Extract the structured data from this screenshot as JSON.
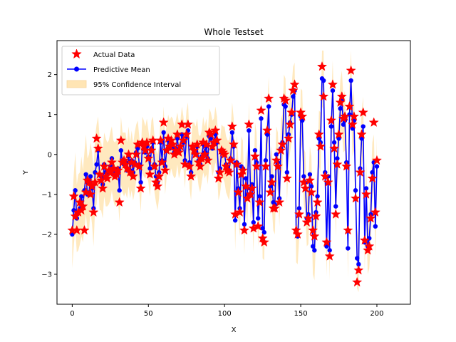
{
  "chart_data": {
    "type": "line",
    "title": "Whole Testset",
    "xlabel": "X",
    "ylabel": "Y",
    "xlim": [
      -10,
      222
    ],
    "ylim": [
      -3.75,
      2.85
    ],
    "x_ticks": [
      0,
      50,
      100,
      150,
      200
    ],
    "y_ticks": [
      -3,
      -2,
      -1,
      0,
      1,
      2
    ],
    "grid": false,
    "legend_position": "upper-left",
    "legend": [
      {
        "label": "Actual Data",
        "kind": "star",
        "color": "#ff0000"
      },
      {
        "label": "Predictive Mean",
        "kind": "line-marker",
        "color": "#0000ff"
      },
      {
        "label": "95% Confidence Interval",
        "kind": "band",
        "color": "#ffe5b4"
      }
    ],
    "series": [
      {
        "name": "Actual Data",
        "values": [
          -1.9,
          -1.05,
          -1.55,
          -1.9,
          -1.45,
          -1.2,
          -1.4,
          -1.3,
          -1.9,
          -0.95,
          -0.65,
          -0.7,
          -1.0,
          -0.8,
          -1.45,
          -0.7,
          0.4,
          0.15,
          -0.5,
          -0.65,
          -0.85,
          -0.3,
          -0.55,
          -0.6,
          -0.4,
          -0.45,
          -0.2,
          -0.35,
          -0.55,
          -0.5,
          -0.4,
          -1.2,
          0.35,
          -0.2,
          -0.15,
          -0.25,
          -0.35,
          0.0,
          -0.45,
          -0.2,
          -0.55,
          -0.25,
          0.0,
          0.25,
          -0.3,
          -0.85,
          0.3,
          0.2,
          0.1,
          0.3,
          -0.1,
          -0.5,
          0.1,
          0.35,
          -0.3,
          -0.7,
          -0.8,
          -0.55,
          0.35,
          -0.2,
          0.8,
          -0.4,
          0.1,
          0.4,
          0.2,
          0.35,
          0.25,
          0.0,
          0.1,
          0.5,
          0.05,
          0.2,
          0.75,
          0.35,
          -0.25,
          0.5,
          0.75,
          -0.3,
          -0.55,
          0.2,
          0.1,
          0.0,
          0.25,
          -0.2,
          -0.3,
          -0.1,
          0.3,
          0.0,
          0.25,
          -0.15,
          0.55,
          0.5,
          0.2,
          0.3,
          0.6,
          0.35,
          -0.6,
          -0.45,
          0.1,
          0.05,
          0.0,
          -0.3,
          -0.4,
          -0.45,
          -0.15,
          0.7,
          0.25,
          -1.5,
          -0.25,
          -0.95,
          -1.45,
          -0.5,
          -0.4,
          -1.9,
          -0.8,
          -1.1,
          0.75,
          -1.0,
          -0.85,
          -1.85,
          -0.05,
          -0.3,
          -1.8,
          -1.2,
          1.1,
          -2.1,
          -2.2,
          -0.3,
          0.6,
          1.4,
          -0.95,
          -0.7,
          -1.35,
          -1.35,
          -0.15,
          -0.3,
          -1.2,
          0.1,
          0.25,
          1.4,
          1.35,
          -0.6,
          0.4,
          0.75,
          1.05,
          1.6,
          1.75,
          -1.9,
          -2.0,
          -1.5,
          1.05,
          0.95,
          -0.7,
          -0.85,
          -1.7,
          -1.6,
          -0.65,
          -0.95,
          -1.9,
          -2.05,
          -1.55,
          -1.2,
          0.5,
          0.2,
          2.2,
          1.45,
          -0.55,
          -2.2,
          -0.7,
          -2.55,
          0.85,
          1.75,
          0.15,
          -1.5,
          -0.25,
          0.5,
          1.3,
          1.45,
          0.9,
          0.95,
          -0.3,
          -1.9,
          1.2,
          2.1,
          0.75,
          0.95,
          -1.1,
          -3.2,
          -2.9,
          -0.45,
          0.5,
          1.05,
          -2.15,
          -1.0,
          -2.4,
          -2.3,
          -1.6,
          -0.6,
          0.8,
          -1.45,
          -0.15
        ]
      },
      {
        "name": "Predictive Mean",
        "values": [
          -2.0,
          -1.4,
          -0.9,
          -1.6,
          -1.45,
          -1.35,
          -1.05,
          -1.3,
          -0.9,
          -0.5,
          -1.0,
          -0.95,
          -0.55,
          -0.85,
          -1.35,
          -0.45,
          -0.25,
          0.1,
          -0.5,
          -0.55,
          -0.75,
          -0.25,
          -0.45,
          -0.5,
          -0.45,
          -0.3,
          -0.1,
          -0.4,
          -0.5,
          -0.45,
          -0.35,
          -0.9,
          0.1,
          -0.2,
          -0.25,
          -0.2,
          -0.4,
          -0.05,
          -0.4,
          -0.15,
          -0.45,
          -0.2,
          0.05,
          0.15,
          -0.25,
          -0.7,
          0.25,
          0.15,
          0.05,
          0.2,
          -0.05,
          -0.35,
          0.15,
          0.3,
          -0.25,
          -0.55,
          -0.7,
          -0.45,
          0.3,
          -0.15,
          0.55,
          -0.3,
          0.1,
          0.35,
          0.15,
          0.3,
          0.2,
          0.05,
          0.15,
          0.4,
          0.1,
          0.2,
          0.5,
          0.3,
          -0.15,
          0.45,
          0.6,
          -0.2,
          -0.45,
          0.15,
          0.1,
          0.05,
          0.2,
          -0.15,
          -0.25,
          -0.05,
          0.25,
          0.05,
          0.2,
          -0.1,
          0.45,
          0.4,
          0.15,
          0.25,
          0.5,
          0.3,
          -0.45,
          -0.35,
          0.05,
          0.05,
          0.0,
          -0.25,
          -0.35,
          -0.4,
          -0.1,
          0.55,
          0.2,
          -1.65,
          -0.2,
          -0.85,
          -1.35,
          -0.3,
          -0.35,
          -1.75,
          -0.6,
          -1.0,
          0.6,
          -0.85,
          -0.75,
          -1.7,
          0.1,
          -0.2,
          -1.6,
          -1.05,
          0.9,
          -1.85,
          -1.95,
          -0.15,
          0.5,
          1.2,
          -0.8,
          -0.55,
          -1.2,
          -1.25,
          0.0,
          -0.2,
          -1.1,
          0.15,
          0.3,
          1.25,
          1.2,
          -0.45,
          0.5,
          0.8,
          1.0,
          1.45,
          1.6,
          -1.95,
          -2.05,
          -1.35,
          0.95,
          0.85,
          -0.55,
          -0.7,
          -1.6,
          -1.5,
          -0.5,
          -0.8,
          -2.3,
          -2.4,
          -1.45,
          -1.05,
          0.4,
          0.3,
          1.9,
          1.85,
          -0.45,
          -2.3,
          -0.55,
          -2.4,
          0.7,
          1.6,
          0.3,
          -1.3,
          -0.1,
          0.4,
          1.15,
          1.35,
          0.75,
          0.85,
          -0.2,
          -2.35,
          1.0,
          1.85,
          0.65,
          0.85,
          -0.9,
          -2.6,
          -2.75,
          -0.35,
          0.4,
          0.7,
          -2.2,
          -0.85,
          -2.3,
          -2.1,
          -1.5,
          -0.45,
          -0.2,
          -1.8,
          -0.3
        ]
      }
    ],
    "interval_width": [
      0.85,
      0.9,
      0.95,
      0.85,
      0.95,
      0.9,
      1.0,
      0.9,
      0.95,
      1.0,
      0.9,
      0.95,
      0.85,
      0.9,
      0.95,
      0.9,
      1.0,
      0.85,
      0.9,
      0.85,
      0.85,
      0.8,
      0.85,
      0.8,
      0.8,
      0.85,
      0.8,
      0.75,
      0.8,
      0.8,
      0.75,
      0.8,
      0.85,
      0.75,
      0.8,
      0.75,
      0.7,
      0.75,
      0.7,
      0.75,
      0.7,
      0.75,
      0.7,
      0.7,
      0.7,
      0.75,
      0.7,
      0.7,
      0.65,
      0.7,
      0.65,
      0.7,
      0.7,
      0.65,
      0.7,
      0.65,
      0.7,
      0.65,
      0.65,
      0.7,
      0.65,
      0.7,
      0.65,
      0.65,
      0.7,
      0.65,
      0.7,
      0.65,
      0.7,
      0.65,
      0.7,
      0.65,
      0.7,
      0.65,
      0.7,
      0.65,
      0.7,
      0.65,
      0.7,
      0.65,
      0.7,
      0.65,
      0.7,
      0.65,
      0.7,
      0.65,
      0.7,
      0.65,
      0.7,
      0.65,
      0.7,
      0.65,
      0.7,
      0.65,
      0.7,
      0.65,
      0.7,
      0.65,
      0.7,
      0.65,
      0.7,
      0.7,
      0.7,
      0.75,
      0.7,
      0.75,
      0.7,
      0.75,
      0.7,
      0.75,
      0.7,
      0.75,
      0.7,
      0.75,
      0.7,
      0.75,
      0.7,
      0.75,
      0.7,
      0.75,
      0.7,
      0.75,
      0.7,
      0.75,
      0.7,
      0.75,
      0.7,
      0.75,
      0.7,
      0.75,
      0.7,
      0.75,
      0.7,
      0.75,
      0.7,
      0.75,
      0.7,
      0.75,
      0.7,
      0.75,
      0.7,
      0.75,
      0.7,
      0.75,
      0.7,
      0.75,
      0.7,
      0.75,
      0.7,
      0.75,
      0.7,
      0.75,
      0.7,
      0.75,
      0.7,
      0.75,
      0.7,
      0.75,
      0.7,
      0.75,
      0.7,
      0.75,
      0.7,
      0.75,
      0.7,
      0.75,
      0.7,
      0.75,
      0.7,
      0.75,
      0.7,
      0.75,
      0.7,
      0.75,
      0.7,
      0.75,
      0.7,
      0.75,
      0.7,
      0.75,
      0.7,
      0.75,
      0.7,
      0.75,
      0.7,
      0.75,
      0.7,
      0.75,
      0.7,
      0.75,
      0.7,
      0.75,
      0.7,
      0.75,
      0.7,
      0.75,
      0.7,
      0.75,
      0.7,
      0.75,
      0.7,
      0.75,
      0.7,
      0.75
    ]
  }
}
